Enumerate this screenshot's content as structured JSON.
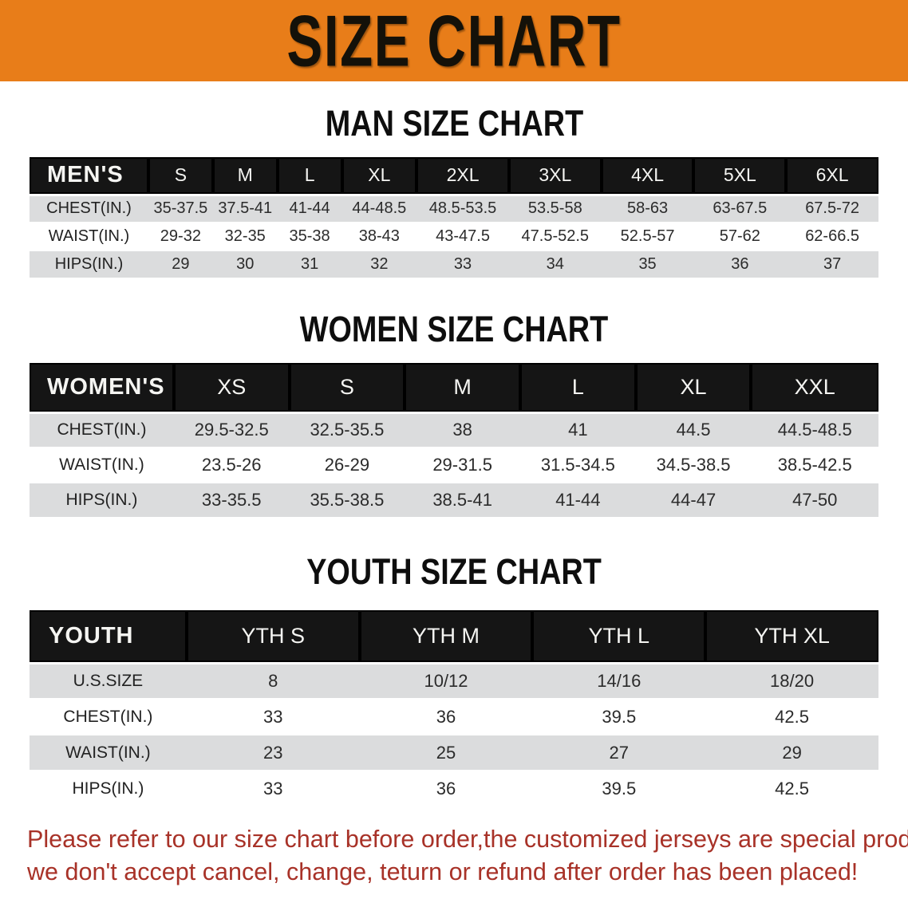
{
  "banner": {
    "title": "SIZE CHART",
    "background_color": "#E87D19"
  },
  "colors": {
    "table_header_bar": "#151515",
    "row_band_gray": "#DBDCDD",
    "footnote_red": "#A83228"
  },
  "sections": [
    {
      "heading": "MAN SIZE CHART",
      "table": {
        "header_label": "MEN'S",
        "columns": [
          "S",
          "M",
          "L",
          "XL",
          "2XL",
          "3XL",
          "4XL",
          "5XL",
          "6XL"
        ],
        "rows": [
          {
            "label": "CHEST(IN.)",
            "values": [
              "35-37.5",
              "37.5-41",
              "41-44",
              "44-48.5",
              "48.5-53.5",
              "53.5-58",
              "58-63",
              "63-67.5",
              "67.5-72"
            ]
          },
          {
            "label": "WAIST(IN.)",
            "values": [
              "29-32",
              "32-35",
              "35-38",
              "38-43",
              "43-47.5",
              "47.5-52.5",
              "52.5-57",
              "57-62",
              "62-66.5"
            ]
          },
          {
            "label": "HIPS(IN.)",
            "values": [
              "29",
              "30",
              "31",
              "32",
              "33",
              "34",
              "35",
              "36",
              "37"
            ]
          }
        ]
      }
    },
    {
      "heading": "WOMEN SIZE CHART",
      "table": {
        "header_label": "WOMEN'S",
        "columns": [
          "XS",
          "S",
          "M",
          "L",
          "XL",
          "XXL"
        ],
        "rows": [
          {
            "label": "CHEST(IN.)",
            "values": [
              "29.5-32.5",
              "32.5-35.5",
              "38",
              "41",
              "44.5",
              "44.5-48.5"
            ]
          },
          {
            "label": "WAIST(IN.)",
            "values": [
              "23.5-26",
              "26-29",
              "29-31.5",
              "31.5-34.5",
              "34.5-38.5",
              "38.5-42.5"
            ]
          },
          {
            "label": "HIPS(IN.)",
            "values": [
              "33-35.5",
              "35.5-38.5",
              "38.5-41",
              "41-44",
              "44-47",
              "47-50"
            ]
          }
        ]
      }
    },
    {
      "heading": "YOUTH SIZE CHART",
      "table": {
        "header_label": "YOUTH",
        "columns": [
          "YTH S",
          "YTH M",
          "YTH L",
          "YTH XL"
        ],
        "rows": [
          {
            "label": "U.S.SIZE",
            "values": [
              "8",
              "10/12",
              "14/16",
              "18/20"
            ]
          },
          {
            "label": "CHEST(IN.)",
            "values": [
              "33",
              "36",
              "39.5",
              "42.5"
            ]
          },
          {
            "label": "WAIST(IN.)",
            "values": [
              "23",
              "25",
              "27",
              "29"
            ]
          },
          {
            "label": "HIPS(IN.)",
            "values": [
              "33",
              "36",
              "39.5",
              "42.5"
            ]
          }
        ]
      }
    }
  ],
  "footnote": {
    "line1": "Please refer to our size chart before order,the customized jerseys are special products,",
    "line2": "we don't accept cancel, change, teturn or refund after order has been placed!"
  }
}
